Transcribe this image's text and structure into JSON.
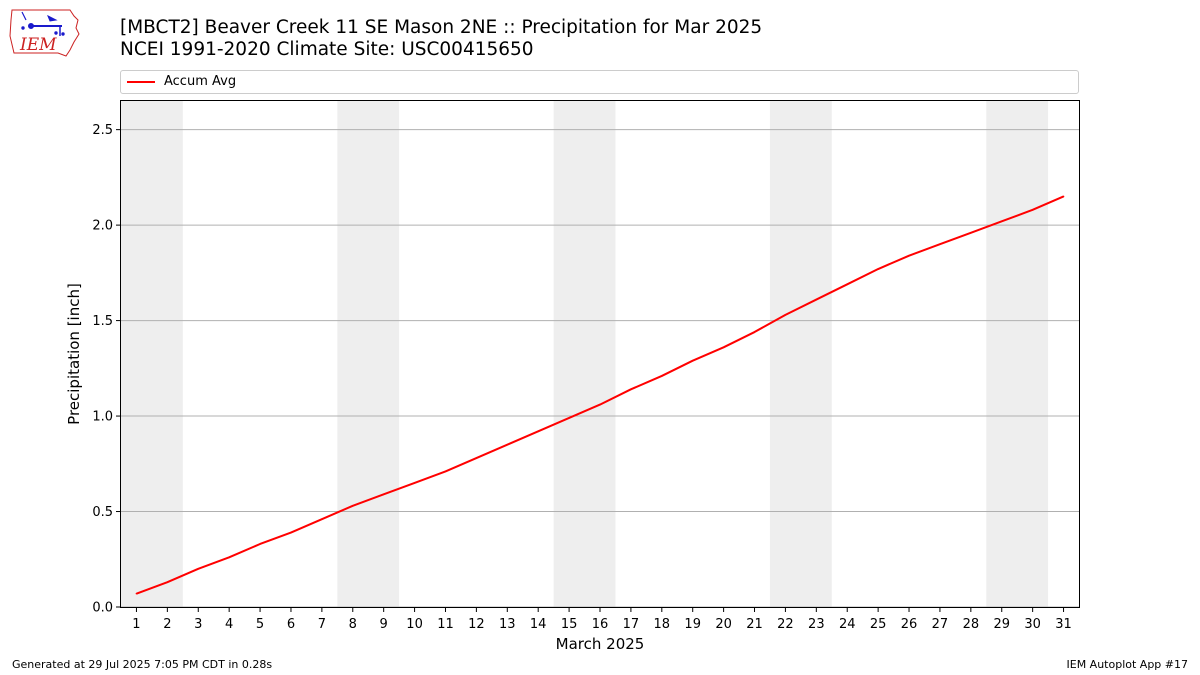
{
  "header": {
    "title_line1": "[MBCT2] Beaver Creek 11 SE Mason 2NE :: Precipitation for Mar 2025",
    "title_line2": "NCEI 1991-2020 Climate Site: USC00415650",
    "logo_text": "IEM"
  },
  "footer": {
    "left": "Generated at 29 Jul 2025 7:05 PM CDT in 0.28s",
    "right": "IEM Autoplot App #17"
  },
  "colors": {
    "series": "#ff0000",
    "weekend_band": "#eeeeee",
    "grid": "#b0b0b0",
    "logo": "#1a1acc",
    "logo_text": "#cc2222"
  },
  "chart_data": {
    "type": "line",
    "xlabel": "March 2025",
    "ylabel": "Precipitation [inch]",
    "xlim": [
      0.5,
      31.5
    ],
    "ylim": [
      0,
      2.65
    ],
    "x_ticks": [
      1,
      2,
      3,
      4,
      5,
      6,
      7,
      8,
      9,
      10,
      11,
      12,
      13,
      14,
      15,
      16,
      17,
      18,
      19,
      20,
      21,
      22,
      23,
      24,
      25,
      26,
      27,
      28,
      29,
      30,
      31
    ],
    "y_ticks": [
      0.0,
      0.5,
      1.0,
      1.5,
      2.0,
      2.5
    ],
    "y_tick_labels": [
      "0.0",
      "0.5",
      "1.0",
      "1.5",
      "2.0",
      "2.5"
    ],
    "grid": "horizontal",
    "legend_position": "top, above plot",
    "weekend_bands": [
      [
        0.5,
        2.5
      ],
      [
        7.5,
        9.5
      ],
      [
        14.5,
        16.5
      ],
      [
        21.5,
        23.5
      ],
      [
        28.5,
        30.5
      ]
    ],
    "series": [
      {
        "name": "Accum Avg",
        "color": "#ff0000",
        "x": [
          1,
          2,
          3,
          4,
          5,
          6,
          7,
          8,
          9,
          10,
          11,
          12,
          13,
          14,
          15,
          16,
          17,
          18,
          19,
          20,
          21,
          22,
          23,
          24,
          25,
          26,
          27,
          28,
          29,
          30,
          31
        ],
        "values": [
          0.07,
          0.13,
          0.2,
          0.26,
          0.33,
          0.39,
          0.46,
          0.53,
          0.59,
          0.65,
          0.71,
          0.78,
          0.85,
          0.92,
          0.99,
          1.06,
          1.14,
          1.21,
          1.29,
          1.36,
          1.44,
          1.53,
          1.61,
          1.69,
          1.77,
          1.84,
          1.9,
          1.96,
          2.02,
          2.08,
          2.15
        ]
      }
    ]
  }
}
